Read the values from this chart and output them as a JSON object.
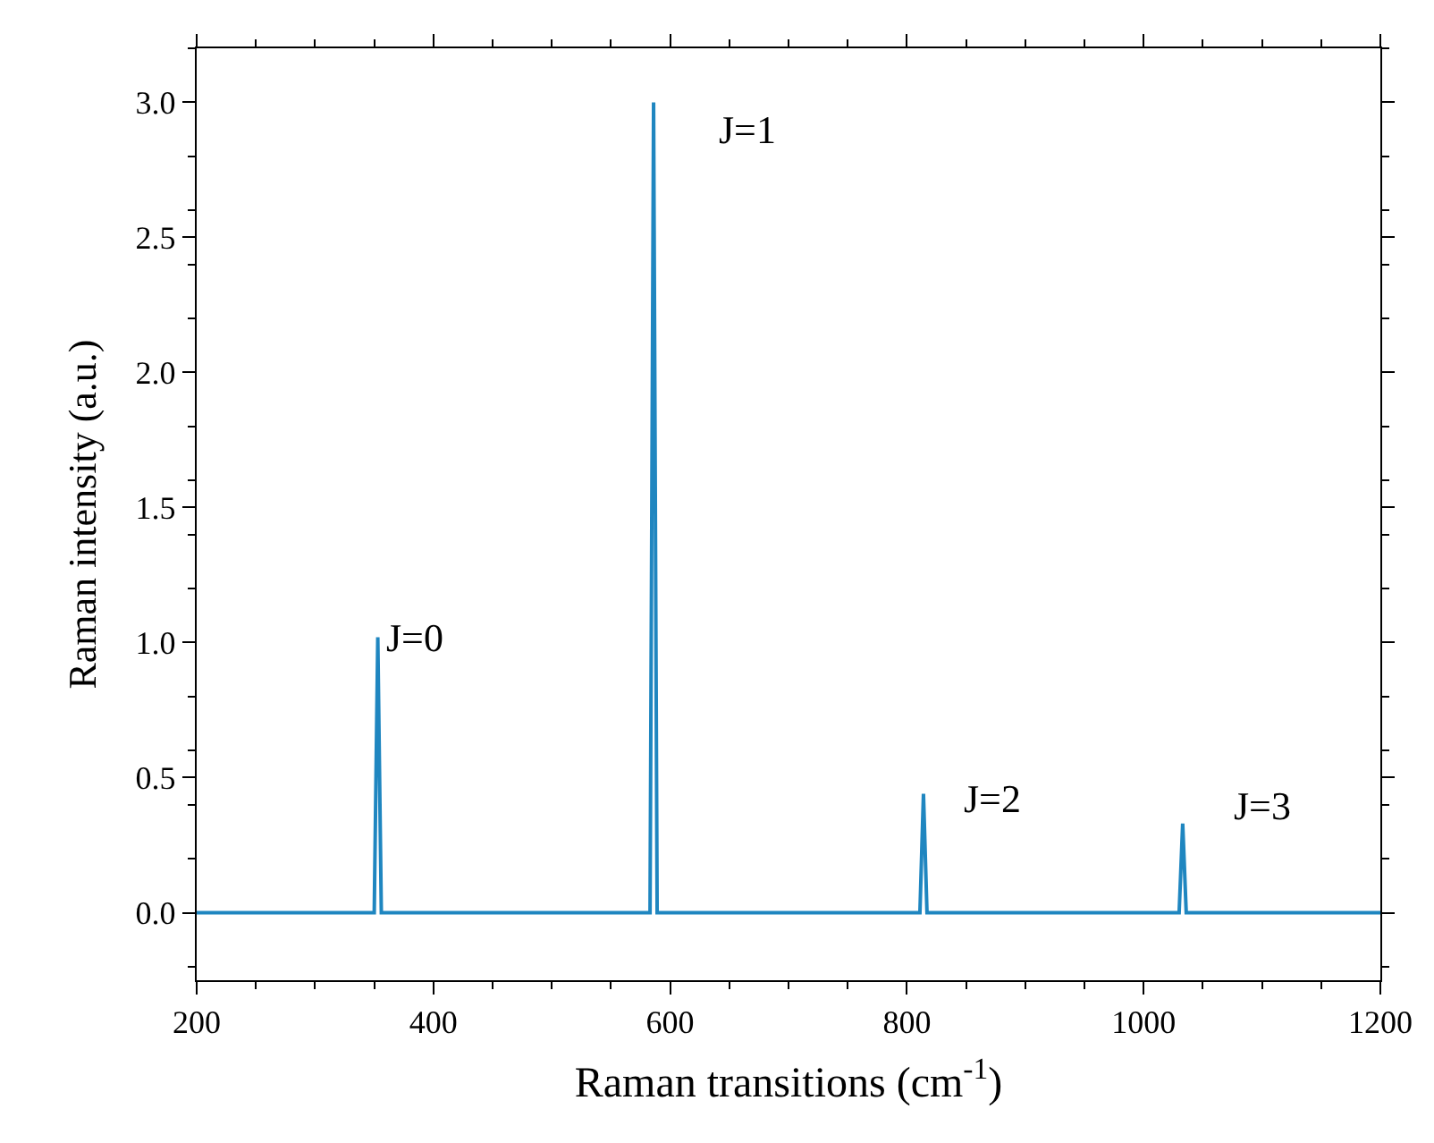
{
  "chart_data": {
    "type": "line",
    "xlabel": "Raman transitions (cm$^{-1}$)",
    "ylabel": "Raman intensity (a.u.)",
    "x": [
      200,
      350,
      353,
      356,
      583,
      586,
      589,
      811,
      814,
      817,
      1030,
      1033,
      1036,
      1200
    ],
    "series": [
      {
        "color": "#1f86c0",
        "values": [
          0,
          0,
          1.02,
          0,
          0,
          3.0,
          0,
          0,
          0.44,
          0,
          0,
          0.33,
          0,
          0
        ]
      }
    ],
    "xlim": [
      200,
      1200
    ],
    "xticks": [
      200,
      400,
      600,
      800,
      1000,
      1200
    ],
    "ylim": [
      -0.25,
      3.2
    ],
    "yticks": [
      {
        "value": 0,
        "label": "0.0"
      },
      {
        "value": 0.5,
        "label": "0.5"
      },
      {
        "value": 1,
        "label": "1.0"
      },
      {
        "value": 1.5,
        "label": "1.5"
      },
      {
        "value": 2,
        "label": "2.0"
      },
      {
        "value": 2.5,
        "label": "2.5"
      },
      {
        "value": 3,
        "label": "3.0"
      }
    ],
    "annotations": [
      {
        "text": "J=0",
        "x": 353,
        "y": 1.02
      },
      {
        "text": "J=1",
        "x": 586,
        "y": 3.0
      },
      {
        "text": "J=2",
        "x": 814,
        "y": 0.44
      },
      {
        "text": "J=3",
        "x": 1033,
        "y": 0.33
      }
    ],
    "marker": "none",
    "line_style": "solid"
  }
}
